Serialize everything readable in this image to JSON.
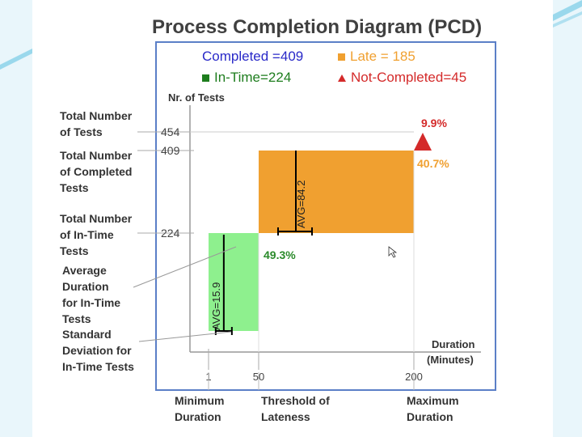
{
  "title": "Process Completion Diagram (PCD)",
  "legend": [
    {
      "label": "Completed =409",
      "color": "#2929c8",
      "marker": "none"
    },
    {
      "label": "Late = 185",
      "color": "#f0a030",
      "marker": "square"
    },
    {
      "label": "In-Time=224",
      "color": "#1e7d1e",
      "marker": "square"
    },
    {
      "label": "Not-Completed=45",
      "color": "#d42a2a",
      "marker": "triangle"
    }
  ],
  "left_annotations": [
    {
      "lines": [
        "Total Number",
        "of Tests"
      ]
    },
    {
      "lines": [
        "Total Number",
        "of Completed",
        "Tests"
      ]
    },
    {
      "lines": [
        "Total Number",
        "of In-Time",
        "Tests"
      ]
    },
    {
      "lines": [
        "Average",
        "Duration",
        "for In-Time",
        "Tests"
      ]
    },
    {
      "lines": [
        "Standard",
        "Deviation for",
        "In-Time Tests"
      ]
    }
  ],
  "bottom_annotations": [
    {
      "lines": [
        "Minimum",
        "Duration"
      ]
    },
    {
      "lines": [
        "Threshold of",
        "Lateness"
      ]
    },
    {
      "lines": [
        "Maximum",
        "Duration"
      ]
    }
  ],
  "chart_data": {
    "type": "bar",
    "ylabel": "Nr. of Tests",
    "xlabel": "Duration\n(Minutes)",
    "x_ticks": [
      1,
      50,
      200
    ],
    "y_ticks": [
      224,
      409,
      454
    ],
    "xlim": [
      1,
      200
    ],
    "ylim": [
      0,
      454
    ],
    "grid": false,
    "bars": [
      {
        "name": "In-Time",
        "x_start": 1,
        "x_end": 50,
        "y_bottom": 0,
        "y_top": 224,
        "color": "#8ef08e",
        "avg_label": "AVG=15.9",
        "pct_label": "49.3%",
        "pct_color": "#2a8a2a"
      },
      {
        "name": "Late",
        "x_start": 50,
        "x_end": 200,
        "y_bottom": 224,
        "y_top": 409,
        "color": "#f0a030",
        "avg_label": "AVG=84.2",
        "pct_label": "40.7%",
        "pct_color": "#f0a030"
      }
    ],
    "not_completed": {
      "x": 200,
      "y": 409,
      "pct_label": "9.9%",
      "color": "#d42a2a"
    },
    "colors": {
      "axis": "#999999",
      "frame": "#5b7fc7"
    }
  }
}
